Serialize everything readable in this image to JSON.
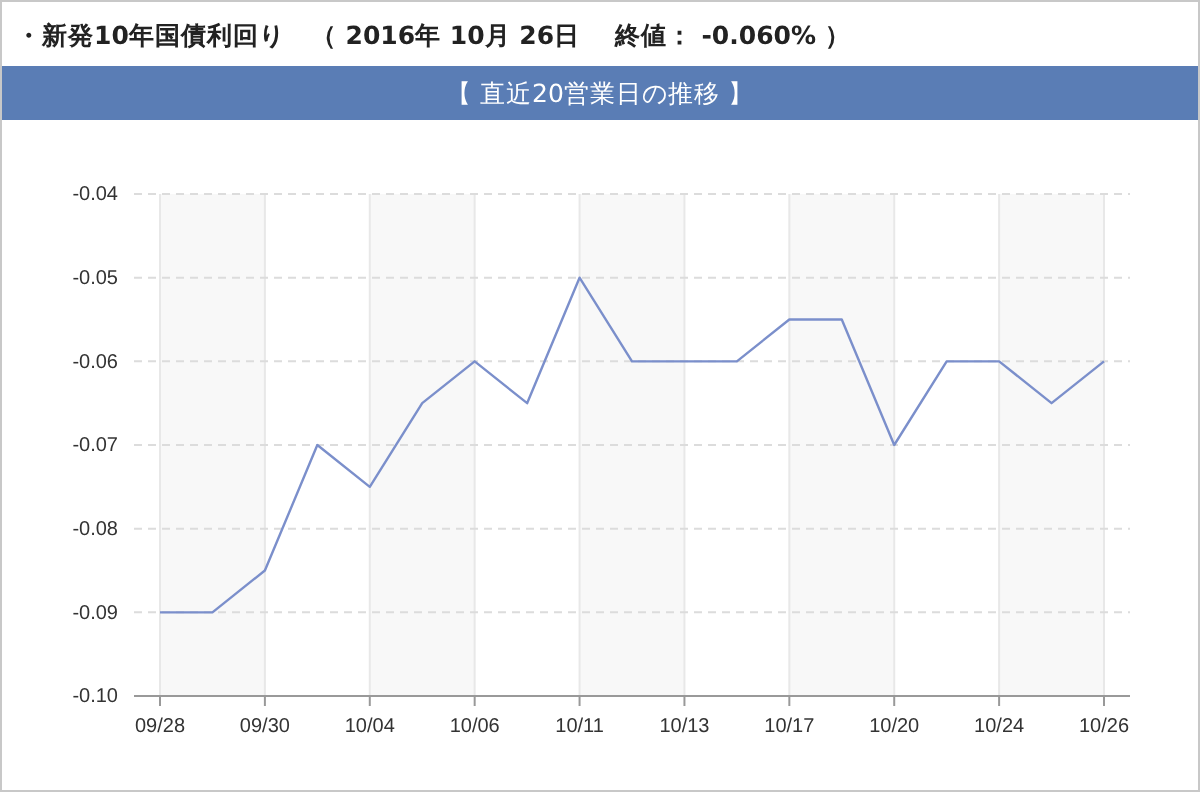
{
  "chart_data": {
    "type": "line",
    "title": "・新発10年国債利回り　（ 2016年 10月 26日　 終値： -0.060% ）",
    "subtitle": "【 直近20営業日の推移 】",
    "categories": [
      "09/28",
      null,
      "09/30",
      null,
      "10/04",
      null,
      "10/06",
      null,
      "10/11",
      null,
      "10/13",
      null,
      "10/17",
      null,
      "10/20",
      null,
      "10/24",
      null,
      "10/26"
    ],
    "series": [
      {
        "color": "#7b8fcb",
        "values": [
          -0.09,
          -0.09,
          -0.085,
          -0.07,
          -0.075,
          -0.065,
          -0.06,
          -0.065,
          -0.05,
          -0.06,
          -0.06,
          -0.06,
          -0.055,
          -0.055,
          -0.07,
          -0.06,
          -0.06,
          -0.065,
          -0.06
        ]
      }
    ],
    "ylim": [
      -0.1,
      -0.04
    ],
    "yticks": [
      {
        "value": -0.1,
        "label": "-0.10"
      },
      -0.09,
      -0.08,
      -0.07,
      -0.06,
      -0.05,
      -0.04
    ],
    "bands": [
      {
        "axis": "x",
        "from": "09/28",
        "to": "09/30",
        "color": "#f8f8f8"
      },
      {
        "axis": "x",
        "from": "10/04",
        "to": "10/06",
        "color": "#f8f8f8"
      },
      {
        "axis": "x",
        "from": "10/11",
        "to": "10/13",
        "color": "#f8f8f8"
      },
      {
        "axis": "x",
        "from": "10/17",
        "to": "10/20",
        "color": "#f8f8f8"
      },
      {
        "axis": "x",
        "from": "10/24",
        "to": "10/26",
        "color": "#f8f8f8"
      }
    ],
    "grid": true,
    "marker": "none",
    "line_style": "solid"
  }
}
